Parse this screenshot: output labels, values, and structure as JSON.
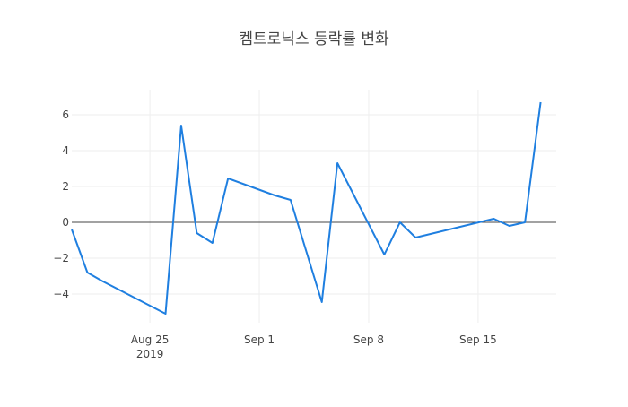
{
  "chart_data": {
    "type": "line",
    "title": "켐트로닉스 등락률 변화",
    "xlabel": "",
    "ylabel": "",
    "x_domain": [
      "2019-08-20",
      "2019-09-20"
    ],
    "ylim": [
      -5.6,
      7.4
    ],
    "x_ticks": [
      {
        "date": "2019-08-25",
        "label": "Aug 25",
        "sublabel": "2019"
      },
      {
        "date": "2019-09-01",
        "label": "Sep 1",
        "sublabel": ""
      },
      {
        "date": "2019-09-08",
        "label": "Sep 8",
        "sublabel": ""
      },
      {
        "date": "2019-09-15",
        "label": "Sep 15",
        "sublabel": ""
      }
    ],
    "y_ticks": [
      6,
      4,
      2,
      0,
      -2,
      -4
    ],
    "y_tick_labels": [
      "6",
      "4",
      "2",
      "0",
      "−2",
      "−4"
    ],
    "grid": true,
    "zero_line": true,
    "series": [
      {
        "color": "#1f7fe0",
        "points": [
          {
            "x": "2019-08-20",
            "y": -0.4
          },
          {
            "x": "2019-08-21",
            "y": -2.8
          },
          {
            "x": "2019-08-22",
            "y": -3.3
          },
          {
            "x": "2019-08-26",
            "y": -5.1
          },
          {
            "x": "2019-08-27",
            "y": 5.4
          },
          {
            "x": "2019-08-28",
            "y": -0.6
          },
          {
            "x": "2019-08-29",
            "y": -1.15
          },
          {
            "x": "2019-08-30",
            "y": 2.45
          },
          {
            "x": "2019-09-02",
            "y": 1.5
          },
          {
            "x": "2019-09-03",
            "y": 1.25
          },
          {
            "x": "2019-09-05",
            "y": -4.45
          },
          {
            "x": "2019-09-06",
            "y": 3.3
          },
          {
            "x": "2019-09-09",
            "y": -1.8
          },
          {
            "x": "2019-09-10",
            "y": 0.0
          },
          {
            "x": "2019-09-11",
            "y": -0.85
          },
          {
            "x": "2019-09-16",
            "y": 0.2
          },
          {
            "x": "2019-09-17",
            "y": -0.2
          },
          {
            "x": "2019-09-18",
            "y": 0.0
          },
          {
            "x": "2019-09-19",
            "y": 6.7
          }
        ]
      }
    ]
  }
}
